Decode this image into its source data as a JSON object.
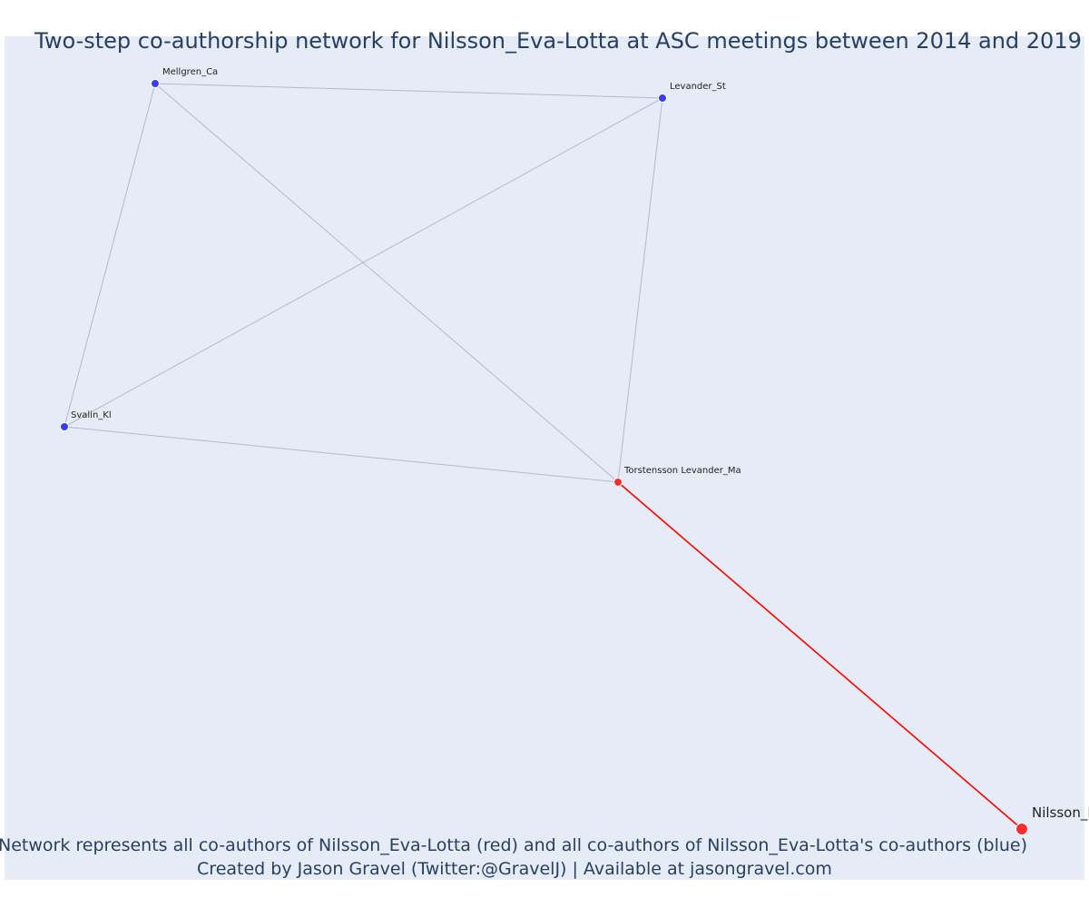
{
  "title": "Two-step co-authorship network for Nilsson_Eva-Lotta at ASC meetings between 2014 and 2019",
  "caption": {
    "line1": "Network represents all co-authors of Nilsson_Eva-Lotta (red) and all co-authors of Nilsson_Eva-Lotta's co-authors (blue)",
    "line2": "Created by Jason Gravel (Twitter:@GravelJ) | Available at jasongravel.com"
  },
  "colors": {
    "background": "#e5ecf6",
    "text": "#2a3f5f",
    "first_degree": "#ff2d2d",
    "second_degree": "#3b3bf0",
    "ego_edge": "#ff0000",
    "edge": "#b4b9c8"
  },
  "nodes": [
    {
      "id": "mellgren",
      "label": "Mellgren_Ca",
      "group": "second_degree"
    },
    {
      "id": "levander",
      "label": "Levander_St",
      "group": "second_degree"
    },
    {
      "id": "svalin",
      "label": "Svalin_Kl",
      "group": "second_degree"
    },
    {
      "id": "torstensson",
      "label": "Torstensson Levander_Ma",
      "group": "first_degree"
    },
    {
      "id": "nilsson",
      "label": "Nilsson_Eva-Lotta",
      "group": "ego"
    }
  ],
  "edges": [
    {
      "source": "mellgren",
      "target": "levander",
      "type": "co-author"
    },
    {
      "source": "mellgren",
      "target": "svalin",
      "type": "co-author"
    },
    {
      "source": "mellgren",
      "target": "torstensson",
      "type": "co-author"
    },
    {
      "source": "levander",
      "target": "svalin",
      "type": "co-author"
    },
    {
      "source": "levander",
      "target": "torstensson",
      "type": "co-author"
    },
    {
      "source": "svalin",
      "target": "torstensson",
      "type": "co-author"
    },
    {
      "source": "torstensson",
      "target": "nilsson",
      "type": "ego"
    }
  ]
}
